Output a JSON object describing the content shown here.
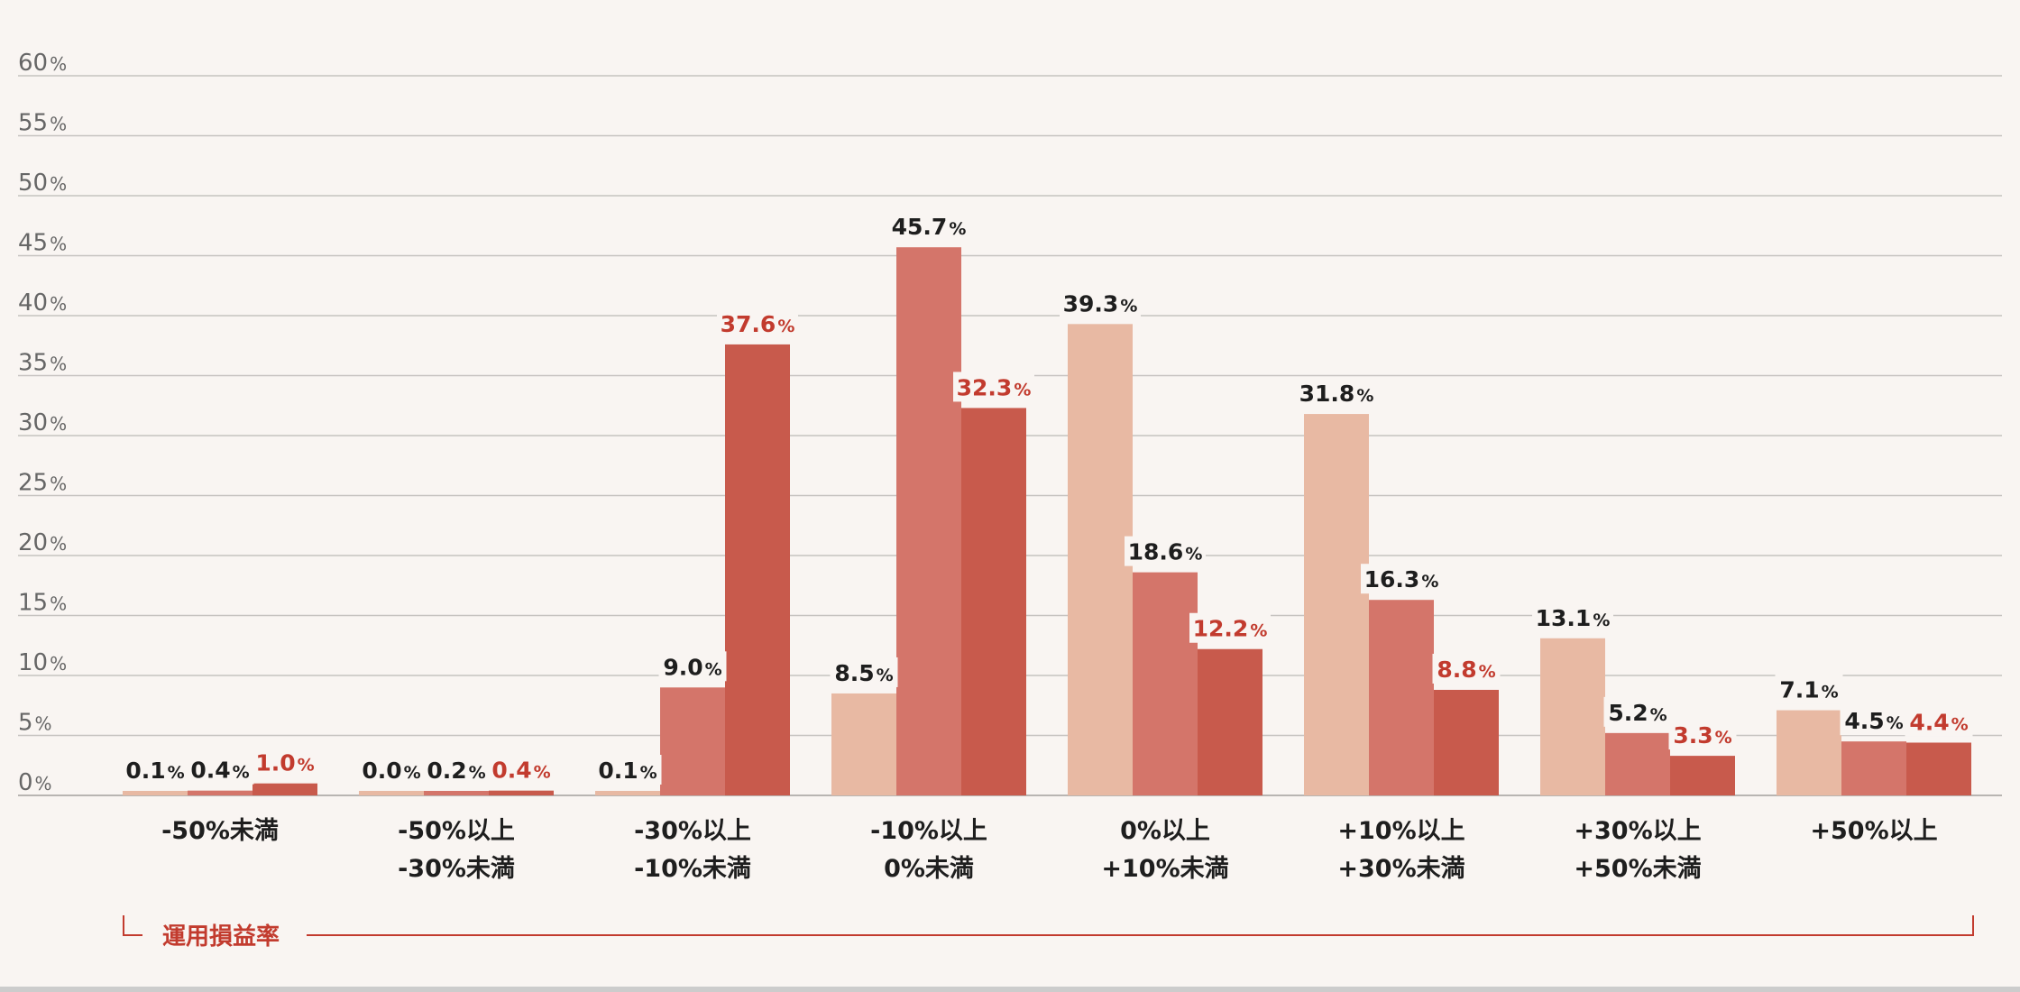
{
  "chart_data": {
    "type": "bar",
    "title": "",
    "xlabel": "運用損益率",
    "ylabel": "",
    "ylim": [
      0,
      60
    ],
    "yticks": [
      0,
      5,
      10,
      15,
      20,
      25,
      30,
      35,
      40,
      45,
      50,
      55,
      60
    ],
    "ytick_unit": "%",
    "grid": true,
    "legend": "none",
    "categories": [
      [
        "-50%未満"
      ],
      [
        "-50%以上",
        "-30%未満"
      ],
      [
        "-30%以上",
        "-10%未満"
      ],
      [
        "-10%以上",
        "0%未満"
      ],
      [
        "0%以上",
        "+10%未満"
      ],
      [
        "+10%以上",
        "+30%未満"
      ],
      [
        "+30%以上",
        "+50%未満"
      ],
      [
        "+50%以上"
      ]
    ],
    "series": [
      {
        "color": "#e8b9a3",
        "label_color": "#1e1e1e",
        "values": [
          0.1,
          0.0,
          0.1,
          8.5,
          39.3,
          31.8,
          13.1,
          7.1
        ],
        "labels": [
          "0.1",
          "0.0",
          "0.1",
          "8.5",
          "39.3",
          "31.8",
          "13.1",
          "7.1"
        ]
      },
      {
        "color": "#d4756a",
        "label_color": "#1e1e1e",
        "values": [
          0.4,
          0.2,
          9.0,
          45.7,
          18.6,
          16.3,
          5.2,
          4.5
        ],
        "labels": [
          "0.4",
          "0.2",
          "9.0",
          "45.7",
          "18.6",
          "16.3",
          "5.2",
          "4.5"
        ]
      },
      {
        "color": "#c85a4c",
        "label_color": "#c23b2e",
        "values": [
          1.0,
          0.4,
          37.6,
          32.3,
          12.2,
          8.8,
          3.3,
          4.4
        ],
        "labels": [
          "1.0",
          "0.4",
          "37.6",
          "32.3",
          "12.2",
          "8.8",
          "3.3",
          "4.4"
        ]
      }
    ]
  }
}
